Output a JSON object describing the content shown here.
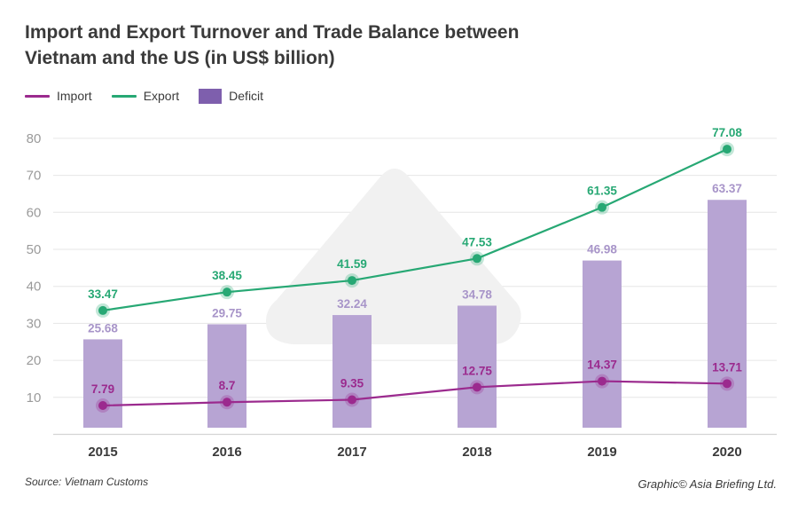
{
  "title": "Import and Export Turnover and Trade Balance between Vietnam and the US (in US$ billion)",
  "legend": {
    "import_label": "Import",
    "export_label": "Export",
    "deficit_label": "Deficit"
  },
  "colors": {
    "import": "#9b2a8e",
    "export": "#27a874",
    "deficit": "#b7a4d3",
    "deficit_label": "#a895c9",
    "legend_deficit": "#7e5fad"
  },
  "source": "Source: Vietnam Customs",
  "credit": "Graphic© Asia Briefing Ltd.",
  "chart_data": {
    "type": "bar",
    "title": "Import and Export Turnover and Trade Balance between Vietnam and the US (in US$ billion)",
    "categories": [
      "2015",
      "2016",
      "2017",
      "2018",
      "2019",
      "2020"
    ],
    "ylim": [
      0,
      80
    ],
    "yticks": [
      10,
      20,
      30,
      40,
      50,
      60,
      70,
      80
    ],
    "grid": true,
    "legend_position": "top-left",
    "series": [
      {
        "name": "Deficit",
        "kind": "bar",
        "values": [
          25.68,
          29.75,
          32.24,
          34.78,
          46.98,
          63.37
        ],
        "labels": [
          "25.68",
          "29.75",
          "32.24",
          "34.78",
          "46.98",
          "63.37"
        ]
      },
      {
        "name": "Export",
        "kind": "line",
        "values": [
          33.47,
          38.45,
          41.59,
          47.53,
          61.35,
          77.08
        ],
        "labels": [
          "33.47",
          "38.45",
          "41.59",
          "47.53",
          "61.35",
          "77.08"
        ]
      },
      {
        "name": "Import",
        "kind": "line",
        "values": [
          7.79,
          8.7,
          9.35,
          12.75,
          14.37,
          13.71
        ],
        "labels": [
          "7.79",
          "8.7",
          "9.35",
          "12.75",
          "14.37",
          "13.71"
        ]
      }
    ]
  }
}
